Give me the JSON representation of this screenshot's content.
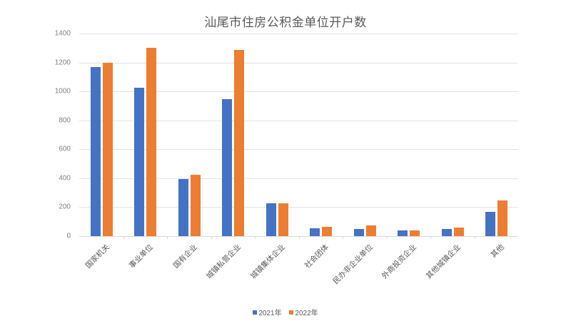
{
  "chart_data": {
    "type": "bar",
    "title": "汕尾市住房公积金单位开户数",
    "xlabel": "",
    "ylabel": "",
    "ylim": [
      0,
      1400
    ],
    "yticks": [
      0,
      200,
      400,
      600,
      800,
      1000,
      1200,
      1400
    ],
    "grid": true,
    "legend_position": "bottom",
    "categories": [
      "国家机关",
      "事业单位",
      "国有企业",
      "城镇私营企业",
      "城镇集体企业",
      "社会团体",
      "民办非企业单位",
      "外商投资企业",
      "其他城镇企业",
      "其他"
    ],
    "series": [
      {
        "name": "2021年",
        "color": "#4472c4",
        "values": [
          1168,
          1025,
          394,
          946,
          225,
          55,
          48,
          38,
          51,
          168
        ]
      },
      {
        "name": "2022年",
        "color": "#ed7d31",
        "values": [
          1198,
          1301,
          424,
          1286,
          225,
          65,
          72,
          38,
          59,
          245
        ]
      }
    ]
  },
  "legend": {
    "items": [
      {
        "label": "2021年",
        "color": "#4472c4"
      },
      {
        "label": "2022年",
        "color": "#ed7d31"
      }
    ]
  }
}
